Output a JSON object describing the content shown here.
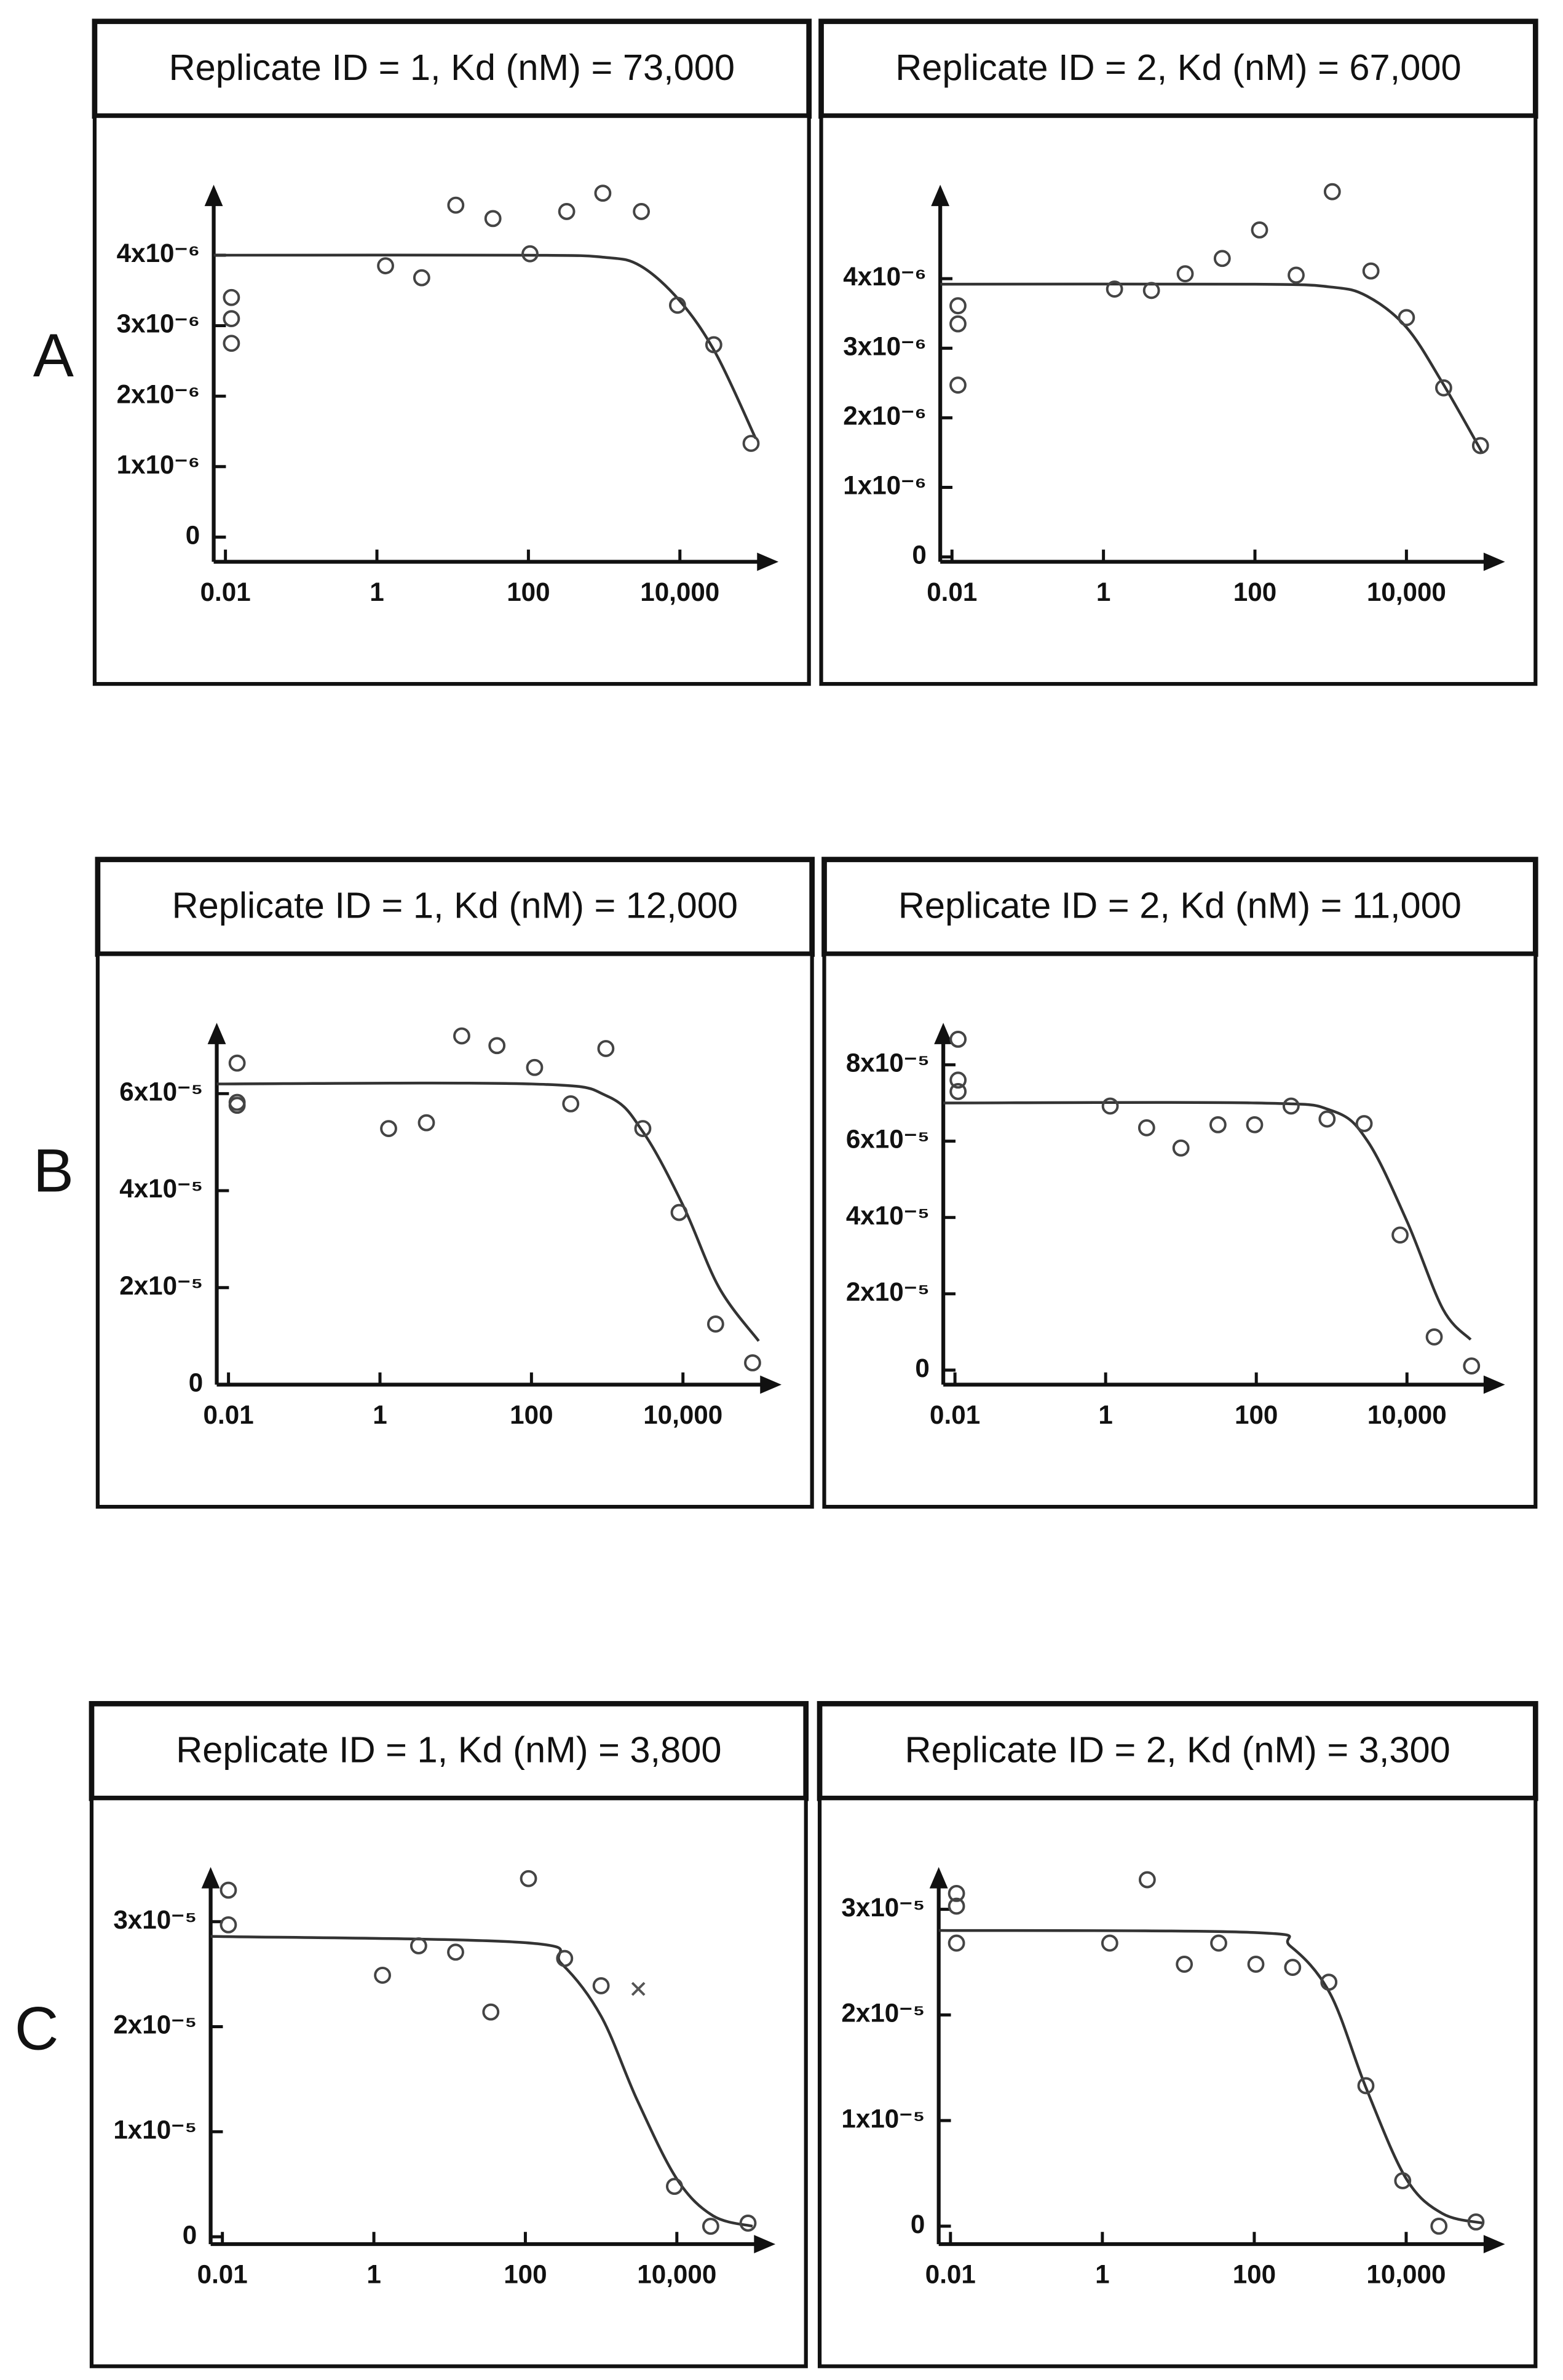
{
  "panels": [
    "A",
    "B",
    "C"
  ],
  "chart_data": [
    {
      "type": "scatter",
      "title": "Replicate ID = 1, Kd (nM) = 73,000",
      "xscale": "log",
      "xlim": [
        0.007,
        200000
      ],
      "xticks": [
        {
          "value": 0.01,
          "label": "0.01"
        },
        1,
        100,
        {
          "value": 10000,
          "label": "10,000"
        }
      ],
      "ylim": [
        -3.5e-07,
        5e-06
      ],
      "yticks": [
        0,
        {
          "value": 1e-06,
          "label": "1x10⁻⁶"
        },
        {
          "value": 2e-06,
          "label": "2x10⁻⁶"
        },
        {
          "value": 3e-06,
          "label": "3x10⁻⁶"
        },
        {
          "value": 4e-06,
          "label": "4x10⁻⁶"
        }
      ],
      "points": {
        "x": [
          0.012,
          0.012,
          0.012,
          1.3,
          3.9,
          11,
          34,
          105,
          320,
          960,
          3100,
          9300,
          28000,
          87000
        ],
        "y": [
          3.4e-06,
          3.1e-06,
          2.75e-06,
          3.85e-06,
          3.68e-06,
          4.71e-06,
          4.52e-06,
          4.02e-06,
          4.62e-06,
          4.88e-06,
          4.62e-06,
          3.29e-06,
          2.73e-06,
          1.33e-06
        ]
      },
      "fit": {
        "x": [
          0.007,
          100,
          1000,
          3000,
          10000,
          30000,
          100000
        ],
        "y": [
          4e-06,
          4e-06,
          3.97e-06,
          3.85e-06,
          3.35e-06,
          2.6e-06,
          1.4e-06
        ]
      }
    },
    {
      "type": "scatter",
      "title": "Replicate ID = 2, Kd (nM) = 67,000",
      "xscale": "log",
      "xlim": [
        0.007,
        200000
      ],
      "xticks": [
        {
          "value": 0.01,
          "label": "0.01"
        },
        1,
        100,
        {
          "value": 10000,
          "label": "10,000"
        }
      ],
      "ylim": [
        -7e-08,
        5.35e-06
      ],
      "yticks": [
        0,
        {
          "value": 1e-06,
          "label": "1x10⁻⁶"
        },
        {
          "value": 2e-06,
          "label": "2x10⁻⁶"
        },
        {
          "value": 3e-06,
          "label": "3x10⁻⁶"
        },
        {
          "value": 4e-06,
          "label": "4x10⁻⁶"
        }
      ],
      "points": {
        "x": [
          0.012,
          0.012,
          0.012,
          1.4,
          4.3,
          12,
          37,
          115,
          350,
          1050,
          3400,
          10000,
          31000,
          95000
        ],
        "y": [
          3.61e-06,
          3.35e-06,
          2.47e-06,
          3.85e-06,
          3.83e-06,
          4.07e-06,
          4.29e-06,
          4.7e-06,
          4.05e-06,
          5.25e-06,
          4.11e-06,
          3.44e-06,
          2.43e-06,
          1.6e-06
        ]
      },
      "fit": {
        "x": [
          0.007,
          100,
          1000,
          3000,
          10000,
          30000,
          100000
        ],
        "y": [
          3.92e-06,
          3.92e-06,
          3.88e-06,
          3.75e-06,
          3.3e-06,
          2.5e-06,
          1.5e-06
        ]
      }
    },
    {
      "type": "scatter",
      "title": "Replicate ID = 1, Kd (nM) = 12,000",
      "xscale": "log",
      "xlim": [
        0.007,
        200000
      ],
      "xticks": [
        {
          "value": 0.01,
          "label": "0.01"
        },
        1,
        100,
        {
          "value": 10000,
          "label": "10,000"
        }
      ],
      "ylim": [
        0,
        7.46e-05
      ],
      "yticks": [
        0,
        {
          "value": 2e-05,
          "label": "2x10⁻⁵"
        },
        {
          "value": 4e-05,
          "label": "4x10⁻⁵"
        },
        {
          "value": 6e-05,
          "label": "6x10⁻⁵"
        }
      ],
      "points": {
        "x": [
          0.013,
          0.013,
          0.013,
          1.3,
          4.1,
          12,
          35,
          110,
          330,
          960,
          2950,
          8900,
          27000,
          83000
        ],
        "y": [
          6.63e-05,
          5.82e-05,
          5.76e-05,
          5.28e-05,
          5.4e-05,
          7.19e-05,
          6.99e-05,
          6.54e-05,
          5.79e-05,
          6.93e-05,
          5.28e-05,
          3.55e-05,
          1.25e-05,
          4.5e-06
        ]
      },
      "fit": {
        "x": [
          0.007,
          100,
          1000,
          3000,
          10000,
          30000,
          100000
        ],
        "y": [
          6.2e-05,
          6.2e-05,
          5.95e-05,
          5.2e-05,
          3.7e-05,
          2e-05,
          9e-06
        ]
      }
    },
    {
      "type": "scatter",
      "title": "Replicate ID = 2, Kd (nM) = 11,000",
      "xscale": "log",
      "xlim": [
        0.007,
        200000
      ],
      "xticks": [
        {
          "value": 0.01,
          "label": "0.01"
        },
        1,
        100,
        {
          "value": 10000,
          "label": "10,000"
        }
      ],
      "ylim": [
        -3.8e-06,
        9.1e-05
      ],
      "yticks": [
        0,
        {
          "value": 2e-05,
          "label": "2x10⁻⁵"
        },
        {
          "value": 4e-05,
          "label": "4x10⁻⁵"
        },
        {
          "value": 6e-05,
          "label": "6x10⁻⁵"
        },
        {
          "value": 8e-05,
          "label": "8x10⁻⁵"
        }
      ],
      "points": {
        "x": [
          0.011,
          0.011,
          0.011,
          1.15,
          3.5,
          10,
          31,
          95,
          290,
          870,
          2700,
          8100,
          23000,
          72000
        ],
        "y": [
          8.67e-05,
          7.6e-05,
          7.3e-05,
          6.92e-05,
          6.35e-05,
          5.82e-05,
          6.43e-05,
          6.43e-05,
          6.92e-05,
          6.58e-05,
          6.46e-05,
          3.54e-05,
          8.7e-06,
          1.1e-06
        ]
      },
      "fit": {
        "x": [
          0.007,
          100,
          1000,
          3000,
          10000,
          30000,
          70000
        ],
        "y": [
          7e-05,
          7e-05,
          6.8e-05,
          6e-05,
          3.9e-05,
          1.6e-05,
          8e-06
        ]
      }
    },
    {
      "type": "scatter",
      "title": "Replicate ID = 1, Kd (nM) = 3,800",
      "xscale": "log",
      "xlim": [
        0.007,
        200000
      ],
      "xticks": [
        {
          "value": 0.01,
          "label": "0.01"
        },
        1,
        100,
        {
          "value": 10000,
          "label": "10,000"
        }
      ],
      "ylim": [
        -7e-07,
        3.52e-05
      ],
      "yticks": [
        0,
        {
          "value": 1e-05,
          "label": "1x10⁻⁵"
        },
        {
          "value": 2e-05,
          "label": "2x10⁻⁵"
        },
        {
          "value": 3e-05,
          "label": "3x10⁻⁵"
        }
      ],
      "points": {
        "x": [
          0.012,
          0.012,
          1.3,
          3.9,
          12,
          35,
          110,
          330,
          1000,
          9300,
          28000,
          87000
        ],
        "y": [
          3.3e-05,
          2.97e-05,
          2.49e-05,
          2.77e-05,
          2.71e-05,
          2.14e-05,
          3.41e-05,
          2.65e-05,
          2.39e-05,
          4.8e-06,
          1e-06,
          1.3e-06
        ]
      },
      "excluded": {
        "x": [
          3100
        ],
        "y": [
          2.36e-05
        ]
      },
      "fit": {
        "x": [
          0.007,
          100,
          300,
          1000,
          3000,
          10000,
          30000,
          100000
        ],
        "y": [
          2.86e-05,
          2.8e-05,
          2.6e-05,
          2.1e-05,
          1.3e-05,
          5.5e-06,
          2e-06,
          1e-06
        ]
      }
    },
    {
      "type": "scatter",
      "title": "Replicate ID = 2, Kd (nM) = 3,300",
      "xscale": "log",
      "xlim": [
        0.007,
        200000
      ],
      "xticks": [
        {
          "value": 0.01,
          "label": "0.01"
        },
        1,
        100,
        {
          "value": 10000,
          "label": "10,000"
        }
      ],
      "ylim": [
        -1.7e-06,
        3.4e-05
      ],
      "yticks": [
        0,
        {
          "value": 1e-05,
          "label": "1x10⁻⁵"
        },
        {
          "value": 2e-05,
          "label": "2x10⁻⁵"
        },
        {
          "value": 3e-05,
          "label": "3x10⁻⁵"
        }
      ],
      "points": {
        "x": [
          0.012,
          0.012,
          0.012,
          1.25,
          3.9,
          12,
          34,
          105,
          320,
          960,
          2950,
          9000,
          27000,
          83000
        ],
        "y": [
          3.15e-05,
          3.03e-05,
          2.68e-05,
          2.68e-05,
          3.28e-05,
          2.48e-05,
          2.68e-05,
          2.48e-05,
          2.45e-05,
          2.31e-05,
          1.33e-05,
          4.3e-06,
          0,
          4e-07
        ]
      },
      "fit": {
        "x": [
          0.007,
          100,
          300,
          1000,
          3000,
          10000,
          30000,
          100000
        ],
        "y": [
          2.8e-05,
          2.78e-05,
          2.65e-05,
          2.2e-05,
          1.3e-05,
          4.5e-06,
          1.2e-06,
          3e-07
        ]
      }
    }
  ]
}
